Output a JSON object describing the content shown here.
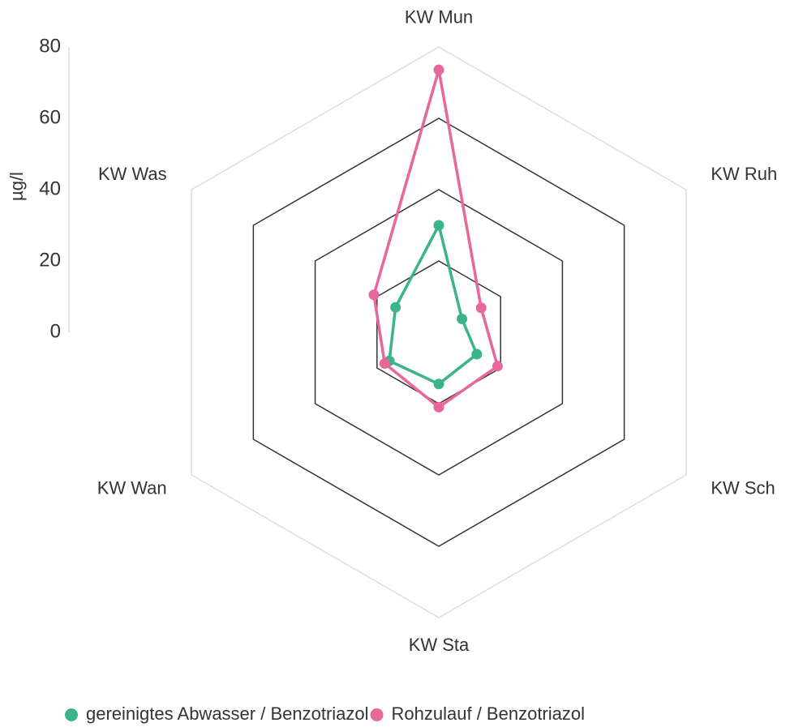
{
  "chart_data": {
    "type": "radar",
    "categories": [
      "KW Mun",
      "KW Ruh",
      "KW Sch",
      "KW Sta",
      "KW Wan",
      "KW Was"
    ],
    "series": [
      {
        "name": "gereinigtes Abwasser / Benzotriazol",
        "color": "#3bb48b",
        "values": [
          30,
          7.5,
          12.3,
          14.5,
          16,
          14
        ]
      },
      {
        "name": "Rohzulauf / Benzotriazol",
        "color": "#e8679b",
        "values": [
          73.6,
          13.7,
          19,
          21,
          17.5,
          21
        ]
      }
    ],
    "ylabel": "µg/l",
    "ylim": [
      0,
      80
    ],
    "yticks": [
      0,
      20,
      40,
      60,
      80
    ],
    "grid": true
  }
}
